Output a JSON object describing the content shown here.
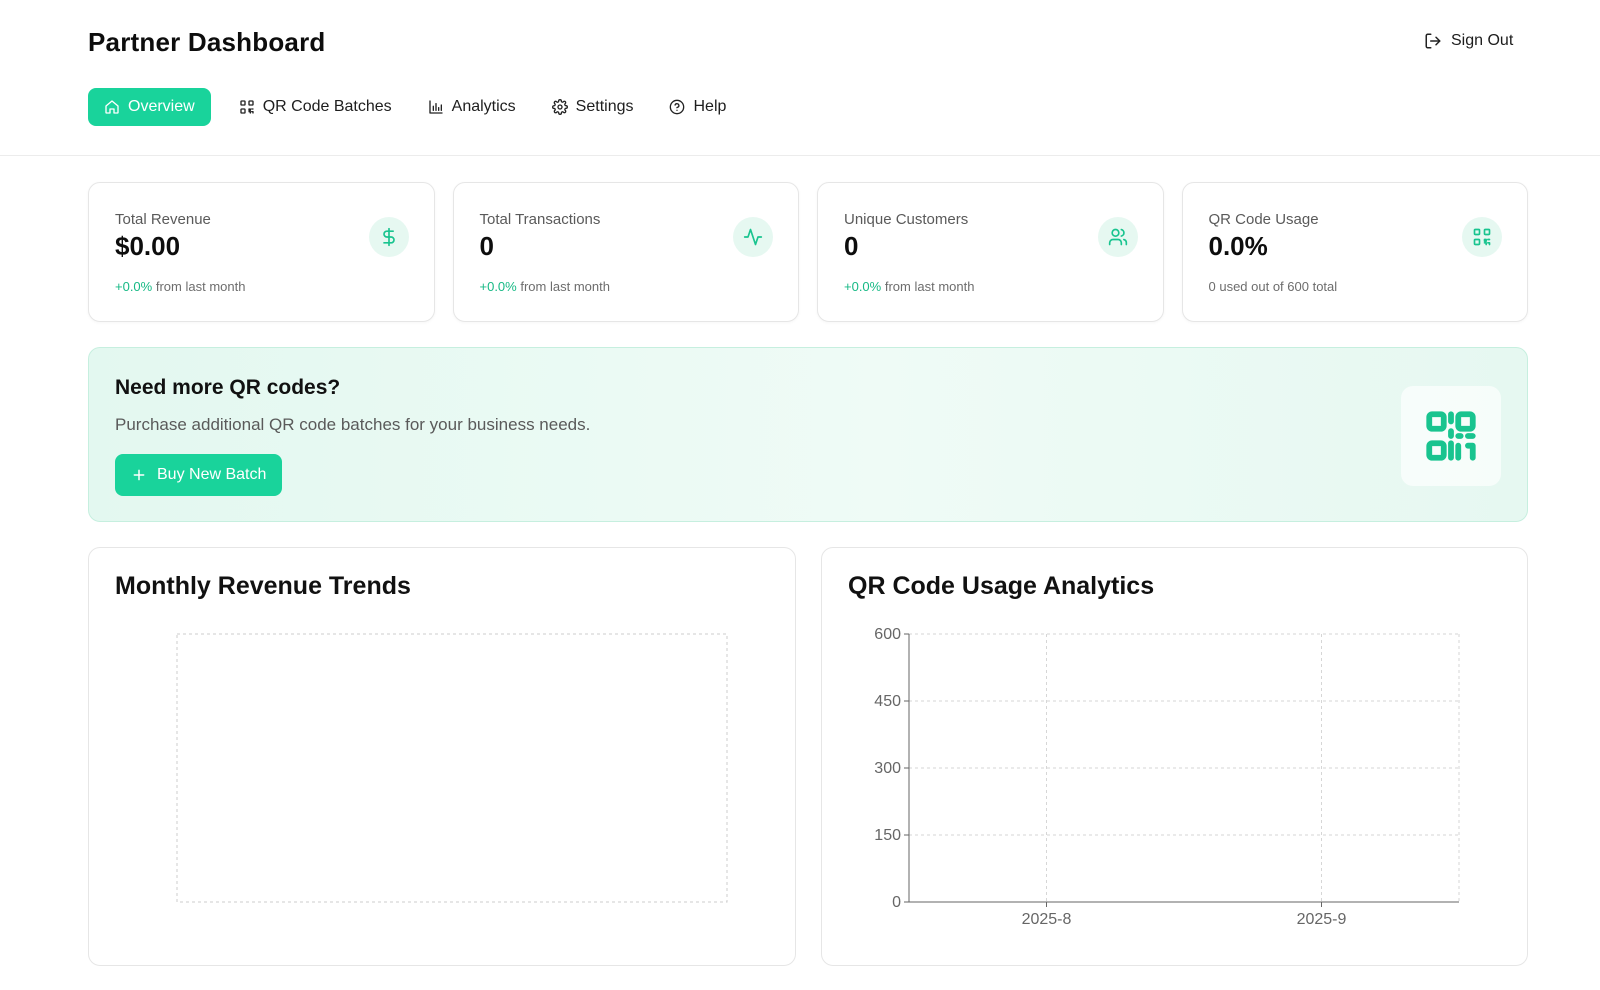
{
  "header": {
    "title": "Partner Dashboard",
    "sign_out_label": "Sign Out"
  },
  "nav": {
    "items": [
      {
        "label": "Overview",
        "icon": "home-icon",
        "active": true
      },
      {
        "label": "QR Code Batches",
        "icon": "qr-code-icon",
        "active": false
      },
      {
        "label": "Analytics",
        "icon": "bar-chart-icon",
        "active": false
      },
      {
        "label": "Settings",
        "icon": "gear-icon",
        "active": false
      },
      {
        "label": "Help",
        "icon": "help-circle-icon",
        "active": false
      }
    ]
  },
  "stats": [
    {
      "label": "Total Revenue",
      "value": "$0.00",
      "delta": "+0.0%",
      "sub": "from last month",
      "icon": "dollar-icon"
    },
    {
      "label": "Total Transactions",
      "value": "0",
      "delta": "+0.0%",
      "sub": "from last month",
      "icon": "activity-icon"
    },
    {
      "label": "Unique Customers",
      "value": "0",
      "delta": "+0.0%",
      "sub": "from last month",
      "icon": "users-icon"
    },
    {
      "label": "QR Code Usage",
      "value": "0.0%",
      "sub": "0 used out of 600 total",
      "icon": "qr-code-icon"
    }
  ],
  "promo": {
    "title": "Need more QR codes?",
    "description": "Purchase additional QR code batches for your business needs.",
    "button_label": "Buy New Batch",
    "icon": "qr-code-icon"
  },
  "colors": {
    "accent": "#19d39b",
    "accent_light": "#e6f8f1",
    "delta_positive": "#17b985"
  },
  "chart_data": [
    {
      "type": "line",
      "title": "Monthly Revenue Trends",
      "x": [],
      "series": [],
      "grid": true
    },
    {
      "type": "line",
      "title": "QR Code Usage Analytics",
      "x": [
        "2025-8",
        "2025-9"
      ],
      "y_ticks": [
        0,
        150,
        300,
        450,
        600
      ],
      "ylim": [
        0,
        600
      ],
      "series": [],
      "grid": true
    }
  ]
}
